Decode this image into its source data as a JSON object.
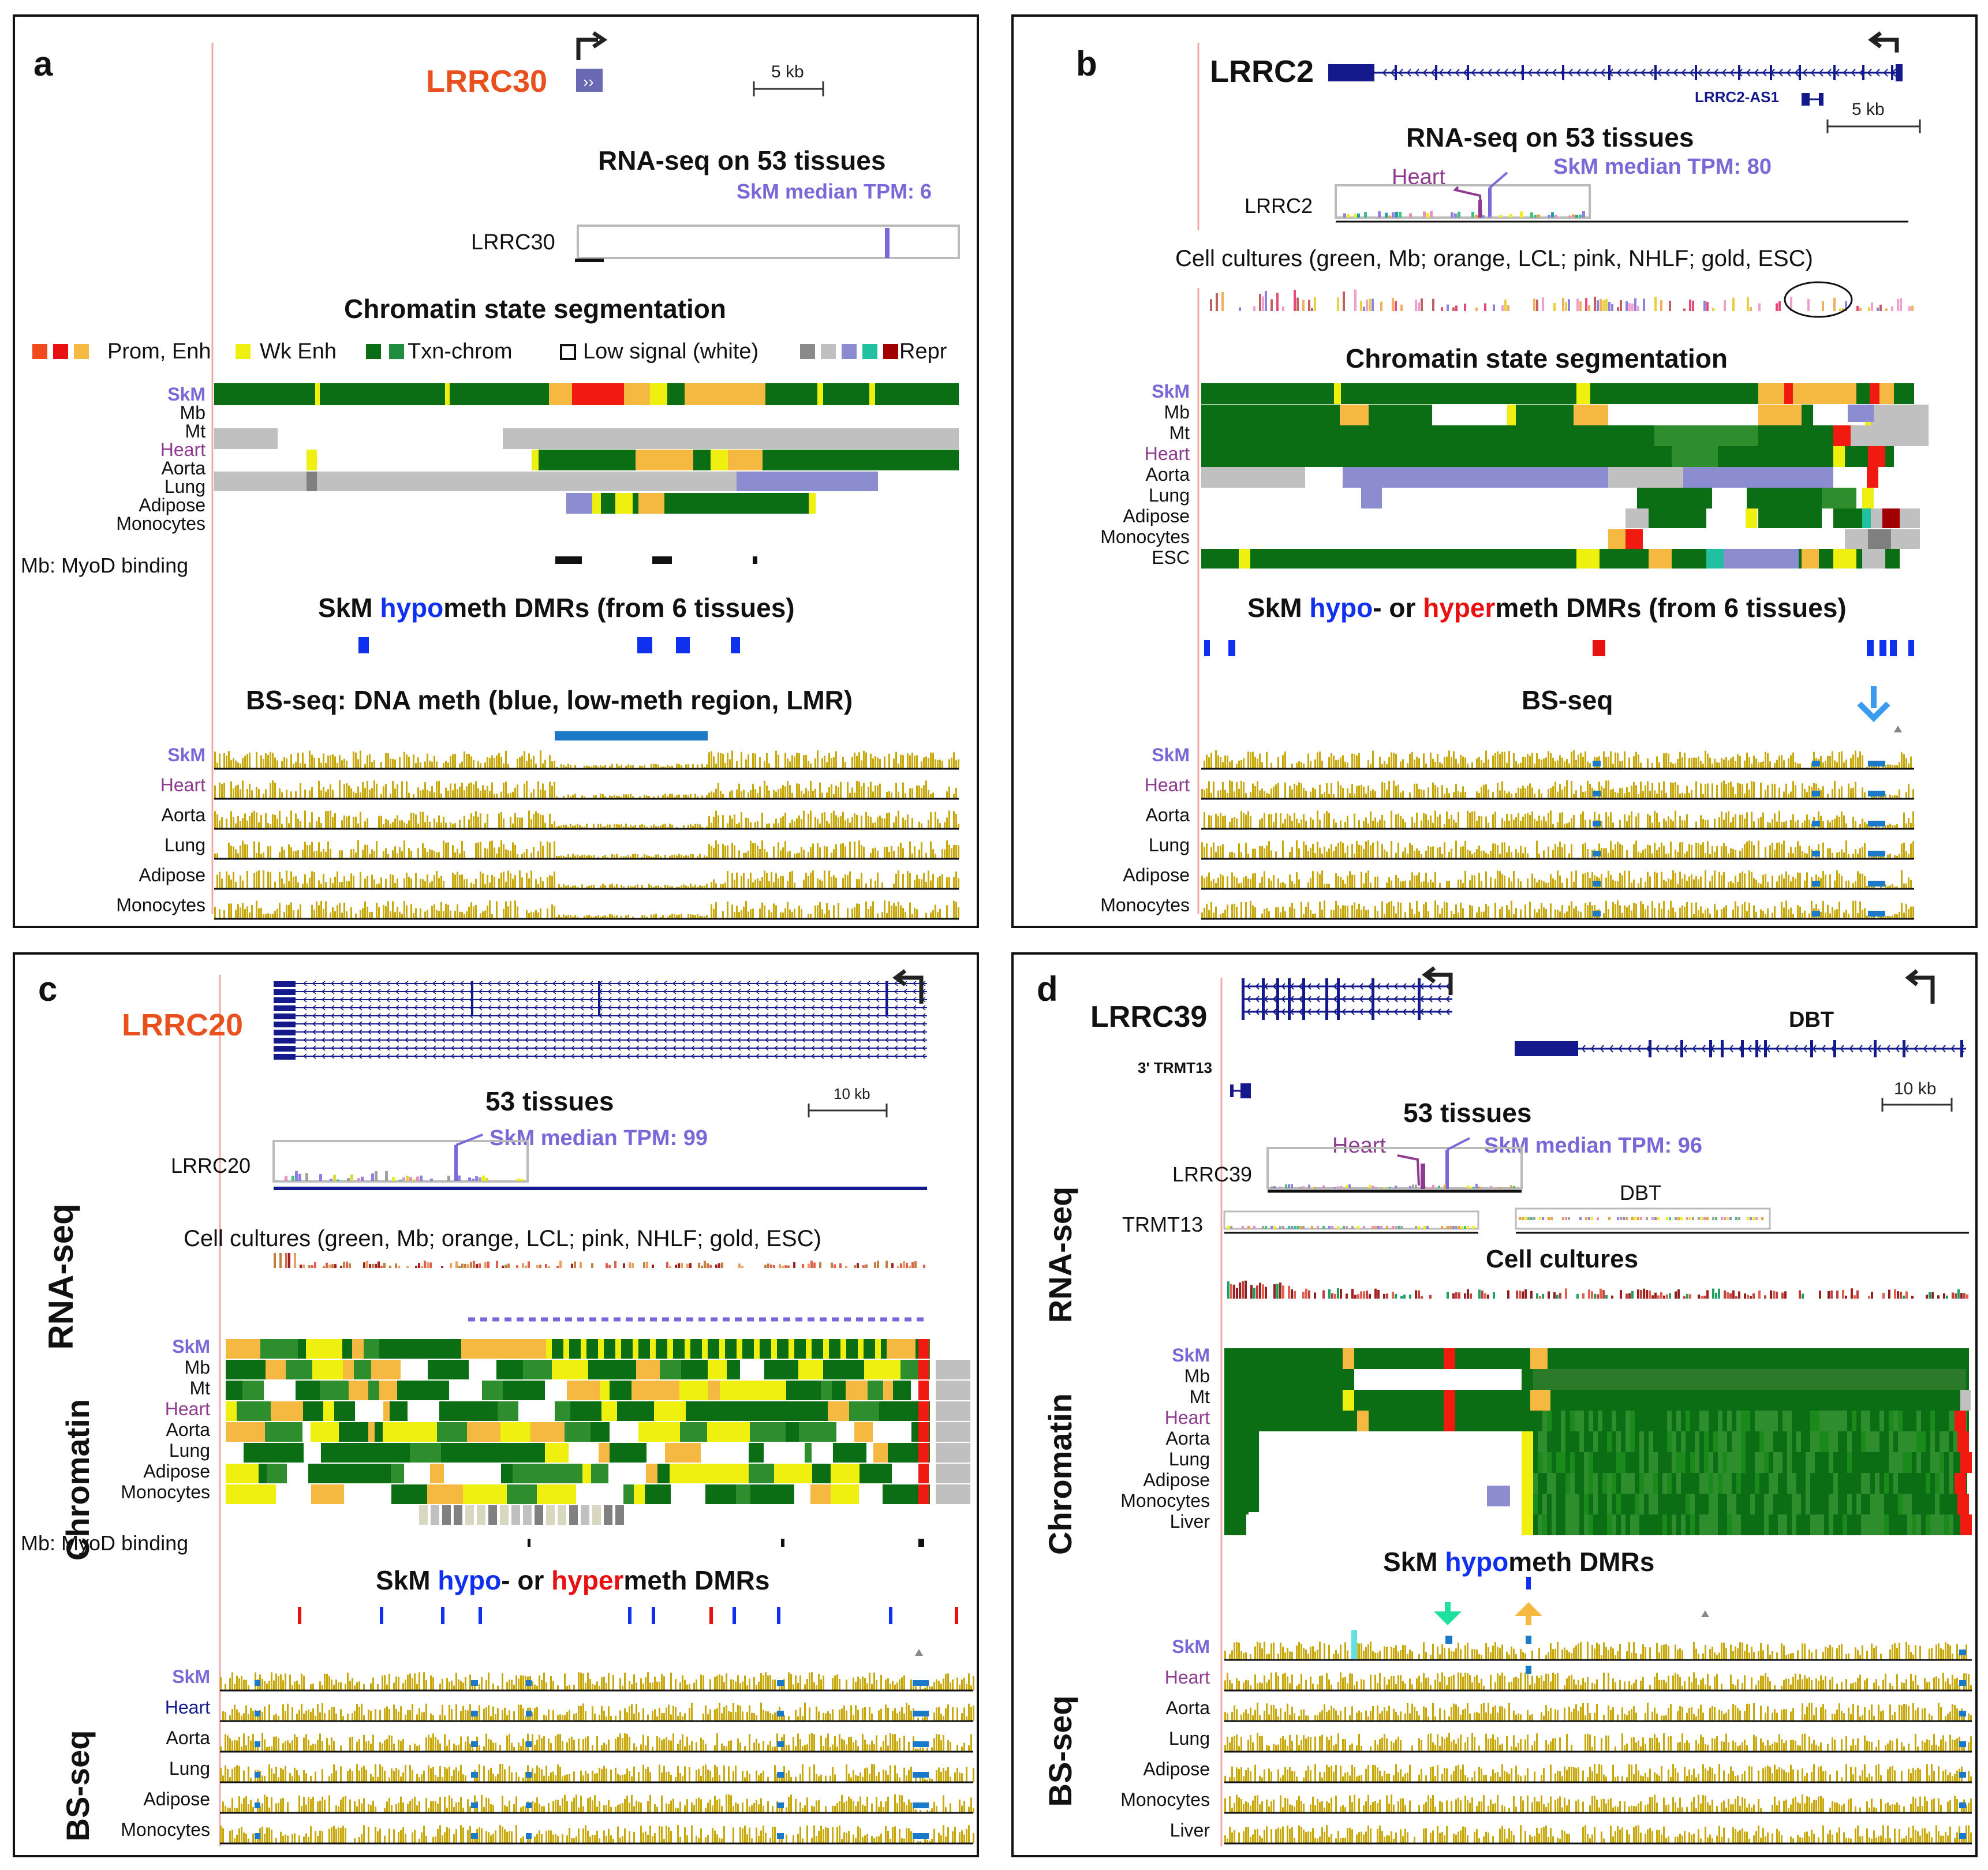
{
  "colors": {
    "skm": "#7b68d8",
    "heart": "#8e3a8e",
    "orange_red": "#e8501e",
    "navy": "#141a8c",
    "gold": "#c8a80a",
    "dmr_blue": "#1030f0",
    "dmr_red": "#e81010",
    "txn": "#0b6e14",
    "txn_light": "#2e8e2e",
    "enh": "#f5b840",
    "wk_enh": "#f0f010",
    "prom": "#f01a10",
    "low": "#c0c0c0",
    "grey": "#8a8a8a",
    "repr_blue": "#8c8cd0",
    "teal": "#20c0a0",
    "dark_red": "#a00000",
    "lmr_blue": "#1a7ac8"
  },
  "panel_a": {
    "letter": "a",
    "gene": "LRRC30",
    "scale": "5 kb",
    "rna_title": "RNA-seq on 53 tissues",
    "median_label": "SkM median TPM: 6",
    "rna_gene": "LRRC30",
    "chrom_title": "Chromatin state segmentation",
    "legend": {
      "prom": "Prom, Enh",
      "wk": "Wk Enh",
      "txn": "Txn-chrom",
      "low": "Low signal (white)",
      "repr": "Repr"
    },
    "chrom_rows": [
      "SkM",
      "Mb",
      "Mt",
      "Heart",
      "Aorta",
      "Lung",
      "Adipose",
      "Monocytes"
    ],
    "myod_label": "Mb: MyoD binding",
    "dmr_title_pre": "SkM ",
    "dmr_title_hypo": "hypo",
    "dmr_title_post": "meth DMRs (from 6 tissues)",
    "bs_title": "BS-seq: DNA meth (blue, low-meth region, LMR)",
    "bs_rows": [
      "SkM",
      "Heart",
      "Aorta",
      "Lung",
      "Adipose",
      "Monocytes"
    ]
  },
  "panel_b": {
    "letter": "b",
    "gene": "LRRC2",
    "antisense": "LRRC2-AS1",
    "scale": "5 kb",
    "rna_title": "RNA-seq on 53 tissues",
    "heart_label": "Heart",
    "median_label": "SkM median TPM: 80",
    "rna_gene": "LRRC2",
    "cell_title": "Cell cultures (green, Mb; orange, LCL; pink, NHLF; gold, ESC)",
    "chrom_title": "Chromatin state segmentation",
    "chrom_rows": [
      "SkM",
      "Mb",
      "Mt",
      "Heart",
      "Aorta",
      "Lung",
      "Adipose",
      "Monocytes",
      "ESC"
    ],
    "dmr_title_pre": "SkM ",
    "dmr_title_hypo": "hypo",
    "dmr_title_mid": "- or ",
    "dmr_title_hyper": "hyper",
    "dmr_title_post": "meth DMRs (from 6 tissues)",
    "bs_title": "BS-seq",
    "bs_rows": [
      "SkM",
      "Heart",
      "Aorta",
      "Lung",
      "Adipose",
      "Monocytes"
    ]
  },
  "panel_c": {
    "letter": "c",
    "gene": "LRRC20",
    "scale": "10 kb",
    "rna_title": "53 tissues",
    "median_label": "SkM median TPM: 99",
    "rna_gene": "LRRC20",
    "cell_title": "Cell cultures (green, Mb; orange, LCL; pink, NHLF; gold, ESC)",
    "side_rna": "RNA-seq",
    "side_chrom": "Chromatin",
    "side_bs": "BS-seq",
    "chrom_rows": [
      "SkM",
      "Mb",
      "Mt",
      "Heart",
      "Aorta",
      "Lung",
      "Adipose",
      "Monocytes"
    ],
    "myod_label": "Mb: MyoD binding",
    "dmr_title_pre": "SkM ",
    "dmr_title_hypo": "hypo",
    "dmr_title_mid": "- or ",
    "dmr_title_hyper": "hyper",
    "dmr_title_post": "meth DMRs",
    "bs_rows": [
      "SkM",
      "Heart",
      "Aorta",
      "Lung",
      "Adipose",
      "Monocytes"
    ]
  },
  "panel_d": {
    "letter": "d",
    "gene": "LRRC39",
    "gene2": "DBT",
    "gene3": "3' TRMT13",
    "scale": "10 kb",
    "rna_title": "53 tissues",
    "heart_label": "Heart",
    "median_label": "SkM median TPM: 96",
    "rna_gene": "LRRC39",
    "rna_gene2": "TRMT13",
    "rna_gene3": "DBT",
    "cell_title": "Cell cultures",
    "side_rna": "RNA-seq",
    "side_chrom": "Chromatin",
    "side_bs": "BS-seq",
    "chrom_rows": [
      "SkM",
      "Mb",
      "Mt",
      "Heart",
      "Aorta",
      "Lung",
      "Adipose",
      "Monocytes",
      "Liver"
    ],
    "dmr_title_pre": "SkM ",
    "dmr_title_hypo": "hypo",
    "dmr_title_post": "meth DMRs",
    "bs_rows": [
      "SkM",
      "Heart",
      "Aorta",
      "Lung",
      "Adipose",
      "Monocytes",
      "Liver"
    ]
  }
}
